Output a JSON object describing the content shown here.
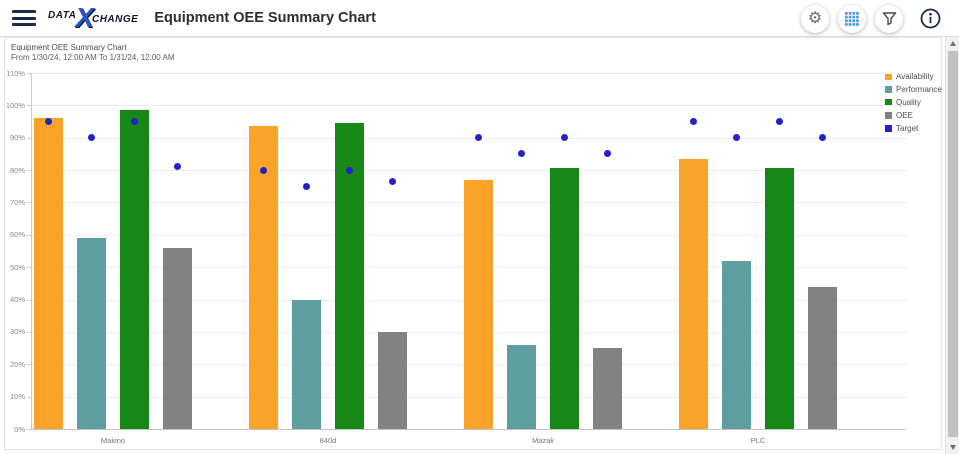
{
  "header": {
    "logo": {
      "data": "DATA",
      "x": "X",
      "change": "CHANGE"
    },
    "title": "Equipment OEE Summary Chart"
  },
  "card": {
    "title": "Equipment OEE Summary Chart",
    "subtitle": "From 1/30/24, 12:00 AM To 1/31/24, 12:00 AM"
  },
  "chart_data": {
    "type": "bar",
    "title": "Equipment OEE Summary Chart",
    "subtitle": "From 1/30/24, 12:00 AM To 1/31/24, 12:00 AM",
    "categories": [
      "Makino",
      "840d",
      "Mazak",
      "PLC"
    ],
    "series": [
      {
        "name": "Availability",
        "color": "#F9A32B",
        "values": [
          96,
          93.5,
          77,
          83.5
        ]
      },
      {
        "name": "Performance",
        "color": "#5F9EA0",
        "values": [
          59,
          40,
          26,
          52
        ]
      },
      {
        "name": "Quality",
        "color": "#178717",
        "values": [
          98.5,
          94.5,
          80.5,
          80.5
        ]
      },
      {
        "name": "OEE",
        "color": "#828282",
        "values": [
          56,
          30,
          25,
          44
        ]
      }
    ],
    "target": {
      "name": "Target",
      "color": "#2222CC",
      "values_by_category": [
        [
          95,
          90,
          95,
          81
        ],
        [
          80,
          75,
          80,
          76.5
        ],
        [
          90,
          85,
          90,
          85
        ],
        [
          95,
          90,
          95,
          90
        ]
      ]
    },
    "ylim": [
      0,
      110
    ],
    "ytick_step": 10,
    "ytick_labels": [
      "0%",
      "10%",
      "20%",
      "30%",
      "40%",
      "50%",
      "60%",
      "70%",
      "80%",
      "90%",
      "100%",
      "110%"
    ],
    "legend": [
      "Availability",
      "Performance",
      "Quality",
      "OEE",
      "Target"
    ],
    "legend_position": "right",
    "grid": true
  }
}
